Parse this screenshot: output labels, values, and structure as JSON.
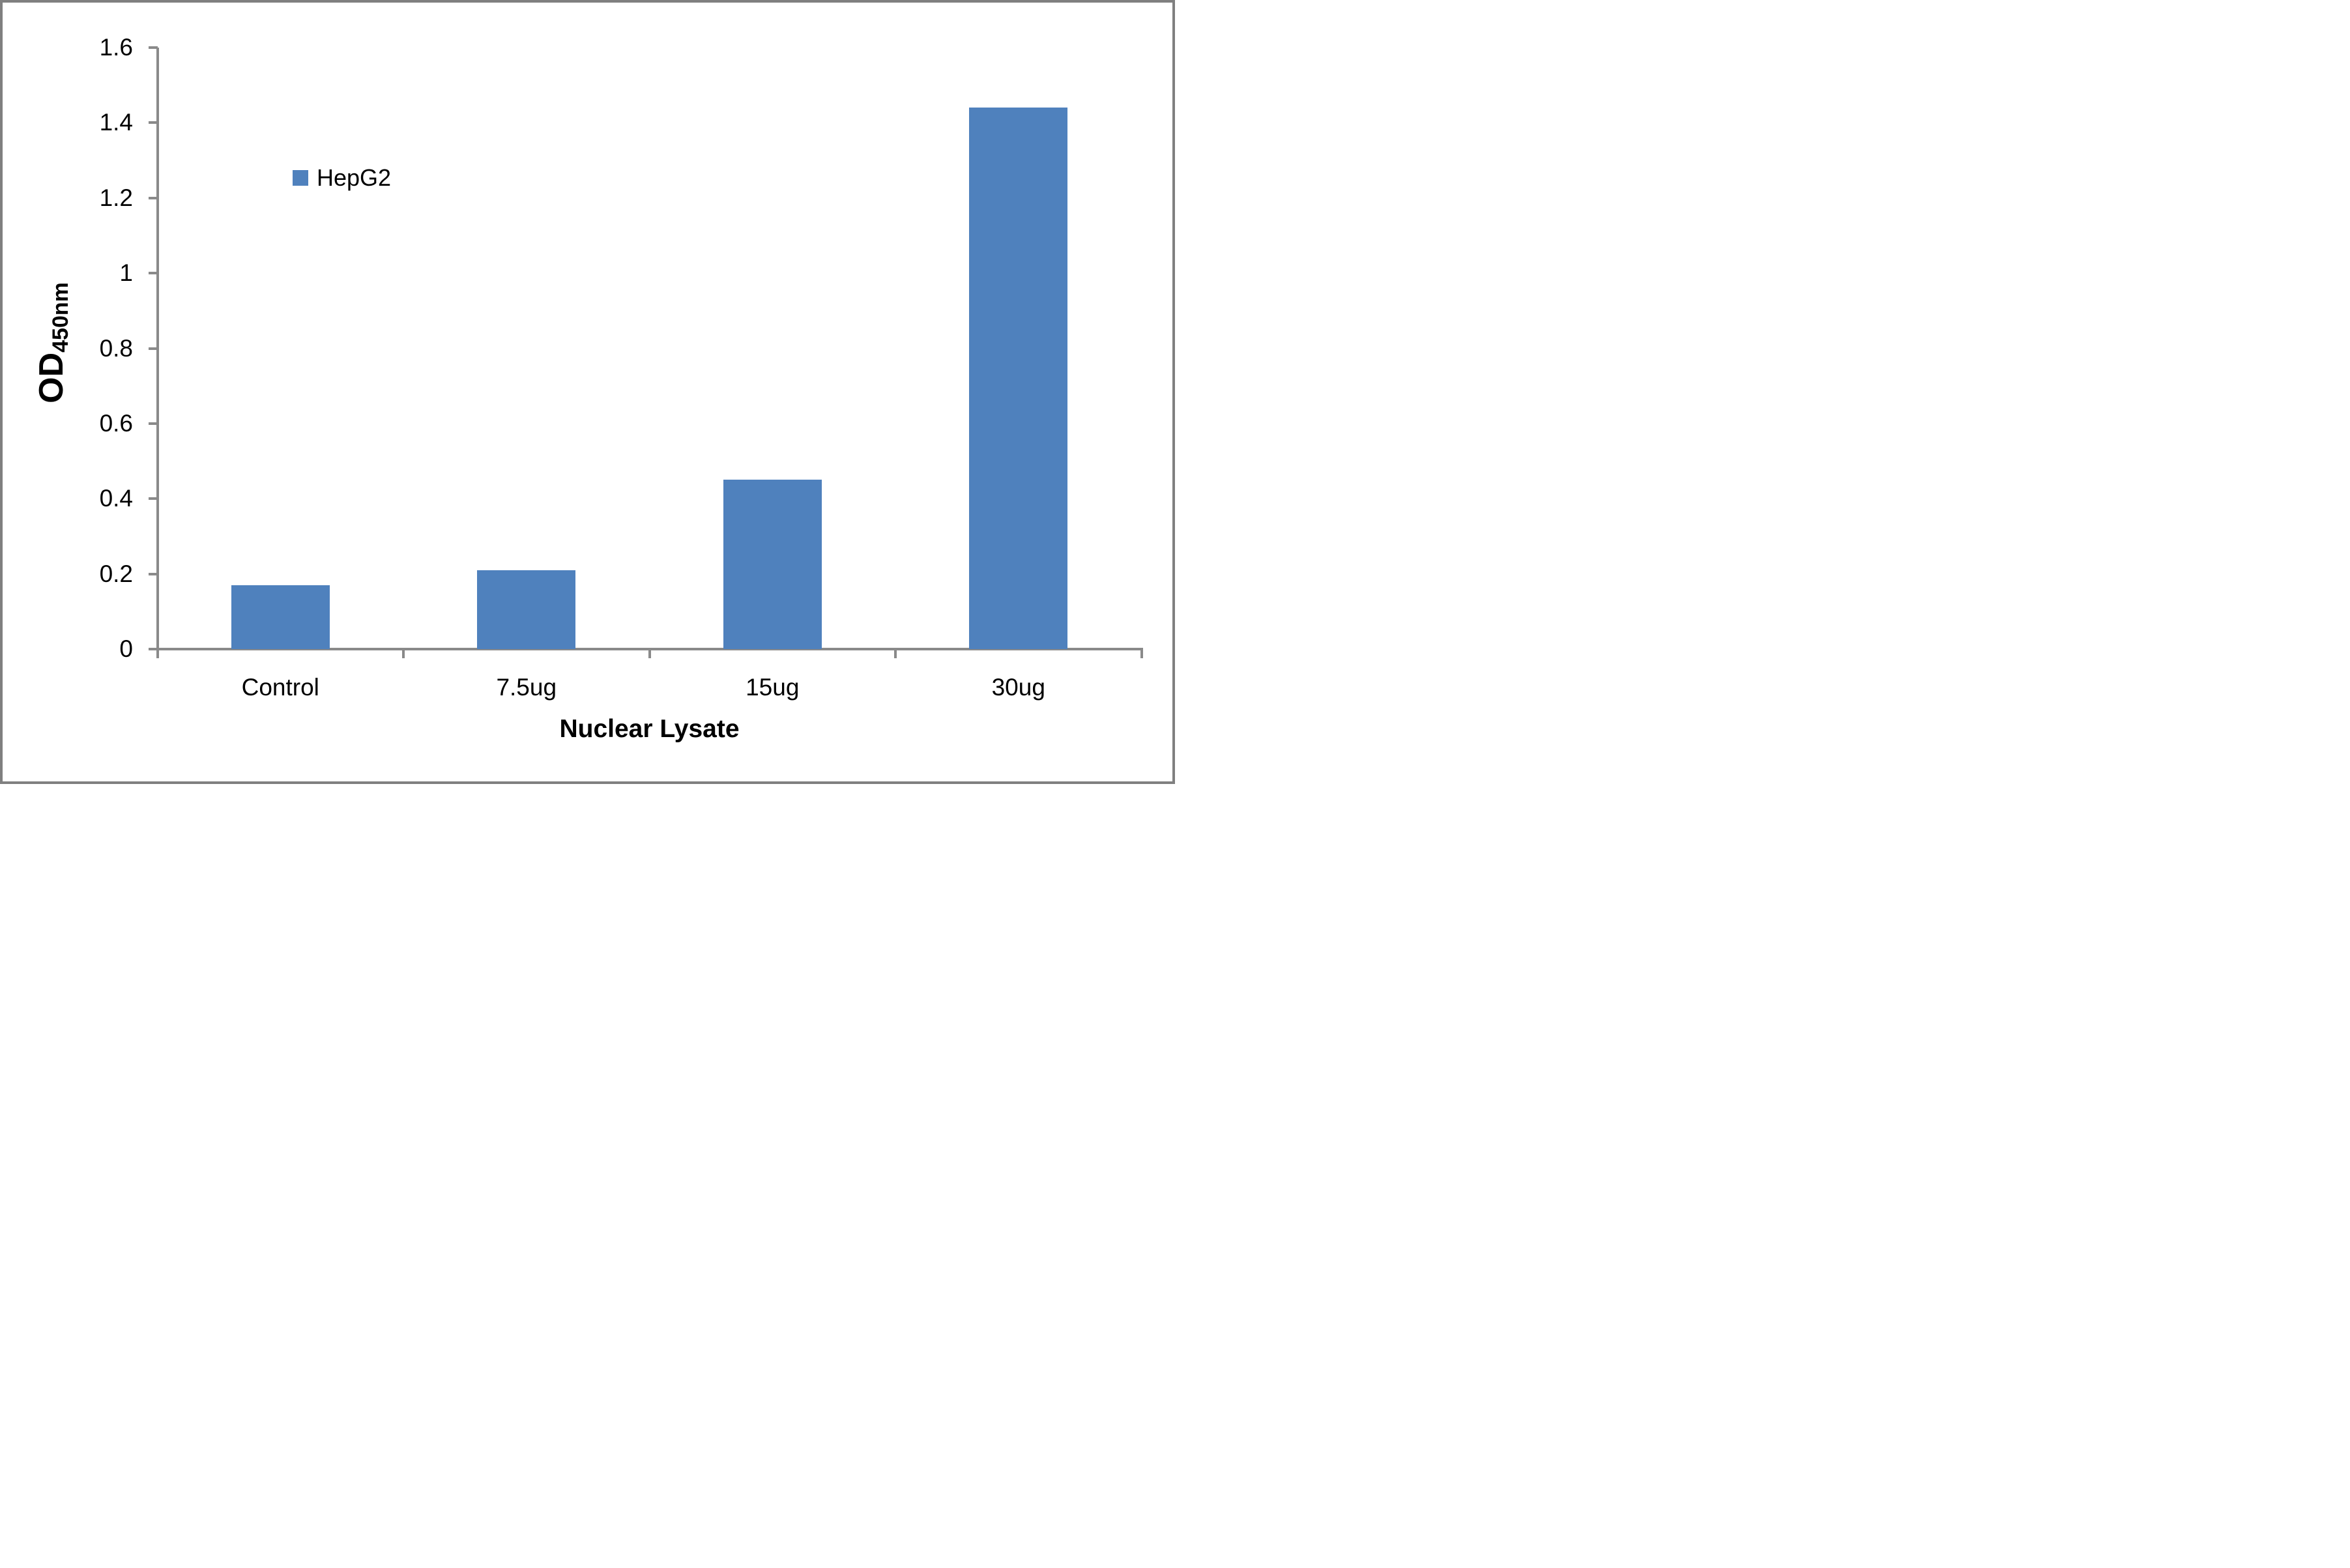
{
  "chart_data": {
    "type": "bar",
    "title": "",
    "categories": [
      "Control",
      "7.5ug",
      "15ug",
      "30ug"
    ],
    "series": [
      {
        "name": "HepG2",
        "values": [
          0.17,
          0.21,
          0.45,
          1.44
        ]
      }
    ],
    "xlabel": "Nuclear Lysate",
    "ylabel": "OD",
    "ylabel_subscript": "450nm",
    "ylim": [
      0,
      1.6
    ],
    "ytick_step": 0.2,
    "ytick_labels": [
      "0",
      "0.2",
      "0.4",
      "0.6",
      "0.8",
      "1",
      "1.2",
      "1.4",
      "1.6"
    ],
    "grid": false,
    "legend": {
      "label": "HepG2",
      "position": "inside-upper-left"
    },
    "colors": {
      "bar": "#4F81BD",
      "axis": "#8A8A8A",
      "text": "#000000",
      "frame": "#808080"
    }
  }
}
